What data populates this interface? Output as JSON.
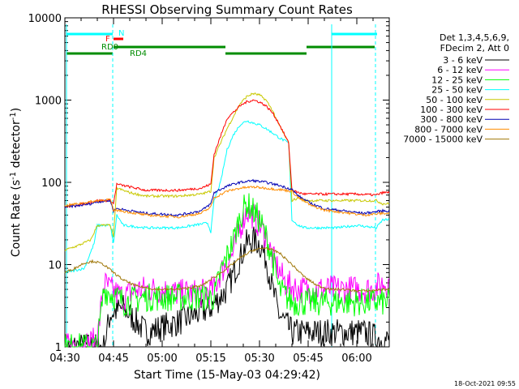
{
  "chart_data": {
    "type": "line",
    "title": "RHESSI Observing Summary Count Rates",
    "xlabel": "Start Time (15-May-03 04:29:42)",
    "ylabel_main": "Count Rate (s",
    "ylabel_sup1": "-1",
    "ylabel_mid": " detector",
    "ylabel_sup2": "-1",
    "ylabel_end": ")",
    "yscale": "log",
    "ylim": [
      1,
      10000
    ],
    "xlim_minutes": [
      0,
      100
    ],
    "x_ticks": [
      {
        "label": "04:30",
        "min": 0
      },
      {
        "label": "04:45",
        "min": 15
      },
      {
        "label": "05:00",
        "min": 30
      },
      {
        "label": "05:15",
        "min": 45
      },
      {
        "label": "05:30",
        "min": 60
      },
      {
        "label": "05:45",
        "min": 75
      },
      {
        "label": "06:00",
        "min": 90
      }
    ],
    "y_ticks": [
      {
        "label": "1",
        "value": 1
      },
      {
        "label": "10",
        "value": 10
      },
      {
        "label": "100",
        "value": 100
      },
      {
        "label": "1000",
        "value": 1000
      },
      {
        "label": "10000",
        "value": 10000
      }
    ],
    "legend_header": [
      "Det 1,3,4,5,6,9,",
      "FDecim 2, Att 0"
    ],
    "series": [
      {
        "name": "3 - 6 keV",
        "color": "#000000",
        "x": [
          0,
          12,
          14,
          18,
          25,
          35,
          45,
          50,
          54,
          56,
          58,
          60,
          62,
          64,
          66,
          70,
          78,
          86,
          92,
          98
        ],
        "y": [
          1,
          1,
          2.5,
          3,
          1.5,
          2,
          3,
          5,
          12,
          18,
          20,
          18,
          12,
          5,
          2.5,
          1.5,
          1.5,
          1.5,
          1.5,
          1.2
        ]
      },
      {
        "name": "6 - 12 keV",
        "color": "#ff00ff",
        "x": [
          0,
          5,
          10,
          12,
          14,
          18,
          22,
          28,
          35,
          42,
          46,
          48,
          52,
          54,
          56,
          58,
          60,
          62,
          64,
          68,
          72,
          80,
          88,
          95,
          98
        ],
        "y": [
          1,
          1,
          1.2,
          6,
          5,
          4,
          5,
          5,
          4.5,
          4.5,
          5,
          8,
          14,
          28,
          45,
          40,
          30,
          22,
          12,
          6,
          5,
          5,
          5,
          5,
          6
        ]
      },
      {
        "name": "12 - 25 keV",
        "color": "#00ff00",
        "x": [
          0,
          10,
          12,
          14,
          18,
          25,
          35,
          44,
          46,
          48,
          52,
          54,
          56,
          58,
          60,
          62,
          64,
          66,
          70,
          78,
          86,
          95,
          98
        ],
        "y": [
          1,
          1,
          5,
          4.5,
          3.5,
          4,
          4,
          4,
          4,
          8,
          20,
          38,
          55,
          45,
          35,
          22,
          12,
          5,
          3.5,
          3.5,
          3.5,
          3.5,
          3.5
        ]
      },
      {
        "name": "25 - 50 keV",
        "color": "#00ffff",
        "x": [
          0,
          6,
          9,
          10,
          14,
          15,
          16,
          18,
          25,
          35,
          44,
          45,
          46,
          48,
          50,
          52,
          54,
          56,
          58,
          60,
          62,
          64,
          66,
          69,
          70,
          72,
          74,
          80,
          84,
          90,
          96,
          98
        ],
        "y": [
          8,
          9,
          18,
          30,
          30,
          18,
          40,
          30,
          28,
          28,
          32,
          25,
          60,
          100,
          250,
          380,
          500,
          560,
          530,
          500,
          450,
          400,
          350,
          300,
          35,
          30,
          28,
          28,
          28,
          30,
          28,
          35
        ]
      },
      {
        "name": "50 - 100 keV",
        "color": "#c8c800",
        "x": [
          0,
          4,
          8,
          10,
          14,
          15,
          16,
          20,
          25,
          35,
          42,
          45,
          46,
          50,
          54,
          56,
          58,
          60,
          62,
          64,
          66,
          69,
          70,
          72,
          74,
          80,
          84,
          90,
          96,
          98
        ],
        "y": [
          15,
          17,
          20,
          30,
          30,
          22,
          85,
          75,
          68,
          68,
          72,
          78,
          200,
          450,
          900,
          1100,
          1200,
          1150,
          1000,
          750,
          500,
          300,
          60,
          65,
          60,
          60,
          60,
          60,
          60,
          55
        ]
      },
      {
        "name": "100 - 300 keV",
        "color": "#ff0000",
        "x": [
          0,
          6,
          10,
          14,
          15,
          16,
          20,
          25,
          35,
          42,
          45,
          46,
          50,
          54,
          56,
          58,
          60,
          62,
          64,
          66,
          69,
          70,
          72,
          74,
          80,
          84,
          90,
          96,
          98
        ],
        "y": [
          50,
          55,
          60,
          60,
          55,
          95,
          88,
          80,
          80,
          85,
          95,
          220,
          600,
          850,
          950,
          1000,
          950,
          850,
          700,
          520,
          300,
          80,
          75,
          72,
          72,
          72,
          72,
          70,
          75
        ]
      },
      {
        "name": "300 - 800 keV",
        "color": "#0000b4",
        "x": [
          0,
          4,
          8,
          10,
          14,
          15,
          16,
          25,
          35,
          42,
          45,
          46,
          50,
          54,
          58,
          62,
          66,
          70,
          72,
          76,
          80,
          86,
          92,
          98
        ],
        "y": [
          50,
          52,
          55,
          58,
          60,
          45,
          48,
          42,
          40,
          45,
          55,
          75,
          90,
          100,
          105,
          100,
          92,
          82,
          68,
          55,
          48,
          45,
          42,
          45
        ]
      },
      {
        "name": "800 - 7000 keV",
        "color": "#ff8c00",
        "x": [
          0,
          4,
          8,
          10,
          14,
          15,
          16,
          25,
          35,
          42,
          45,
          46,
          50,
          54,
          58,
          62,
          66,
          70,
          72,
          76,
          80,
          86,
          92,
          98
        ],
        "y": [
          52,
          55,
          58,
          60,
          62,
          45,
          46,
          40,
          38,
          42,
          50,
          65,
          78,
          85,
          88,
          85,
          82,
          78,
          65,
          52,
          46,
          43,
          40,
          42
        ]
      },
      {
        "name": "7000 - 15000 keV",
        "color": "#a0780a",
        "x": [
          0,
          3,
          6,
          9,
          12,
          15,
          18,
          22,
          28,
          35,
          42,
          46,
          50,
          54,
          58,
          62,
          66,
          70,
          74,
          78,
          82,
          86,
          90,
          94,
          98
        ],
        "y": [
          8,
          9,
          10.5,
          11,
          10,
          8,
          6.5,
          5.5,
          5,
          5,
          5.5,
          7,
          9,
          12,
          15,
          16,
          14,
          10,
          7,
          5.5,
          5,
          5,
          4.8,
          4.8,
          5
        ]
      }
    ],
    "annotations": [
      {
        "text": "F",
        "color": "#ff0000"
      },
      {
        "text": "N",
        "color": "#00ffff"
      },
      {
        "text": "RD0",
        "color": "#008c00"
      },
      {
        "text": "RD4",
        "color": "#008c00"
      }
    ],
    "timestamp": "18-Oct-2021 09:55"
  },
  "colors": {
    "attenuator_cyan": "#00ffff",
    "decimation_green": "#008c00",
    "flare_red": "#ff0000"
  }
}
